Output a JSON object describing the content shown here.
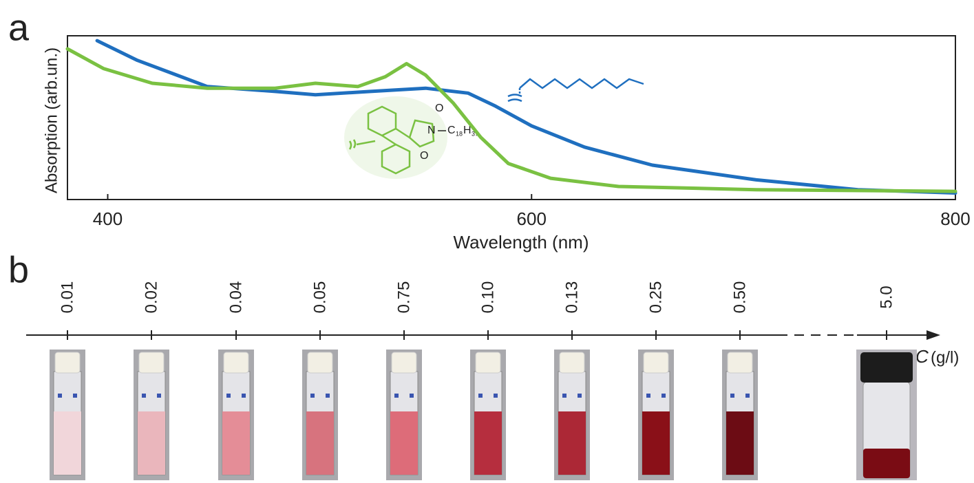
{
  "panel_labels": [
    "a",
    "b"
  ],
  "chart_data": {
    "type": "line",
    "xlabel": "Wavelength (nm)",
    "ylabel": "Absorption (arb.un.)",
    "xlim": [
      381,
      800
    ],
    "xticks": [
      400,
      600,
      800
    ],
    "ylim": [
      0,
      1
    ],
    "series": [
      {
        "color": "#1f6fbf",
        "x": [
          395,
          414,
          447,
          479,
          498,
          524,
          550,
          570,
          583,
          600,
          625,
          657,
          706,
          754,
          800
        ],
        "values": [
          0.97,
          0.85,
          0.69,
          0.66,
          0.64,
          0.66,
          0.68,
          0.65,
          0.57,
          0.45,
          0.32,
          0.21,
          0.12,
          0.06,
          0.04
        ]
      },
      {
        "color": "#7ac142",
        "x": [
          381,
          398,
          421,
          447,
          479,
          498,
          518,
          531,
          541,
          550,
          563,
          576,
          589,
          609,
          641,
          706,
          800
        ],
        "values": [
          0.92,
          0.8,
          0.71,
          0.68,
          0.68,
          0.71,
          0.69,
          0.75,
          0.83,
          0.76,
          0.59,
          0.38,
          0.22,
          0.13,
          0.08,
          0.06,
          0.05
        ]
      }
    ],
    "formula": {
      "oxygen_top": "O",
      "nitrogen": "N",
      "carbon": "C",
      "carbon_count": "18",
      "hydrogen": "H",
      "hydrogen_count": "37",
      "oxygen_bottom": "O"
    }
  },
  "concentration_scale": {
    "symbol": "C",
    "unit": "(g/l)",
    "samples": [
      {
        "label": "0.01",
        "color": "#f1d6da"
      },
      {
        "label": "0.02",
        "color": "#eab6bc"
      },
      {
        "label": "0.04",
        "color": "#e48d97"
      },
      {
        "label": "0.05",
        "color": "#d7737e"
      },
      {
        "label": "0.75",
        "color": "#dd6c79"
      },
      {
        "label": "0.10",
        "color": "#b62e3e"
      },
      {
        "label": "0.13",
        "color": "#ac2836"
      },
      {
        "label": "0.25",
        "color": "#8a1018"
      },
      {
        "label": "0.50",
        "color": "#6c0c14"
      },
      {
        "label": "5.0",
        "color": "#7a0c14"
      }
    ]
  }
}
